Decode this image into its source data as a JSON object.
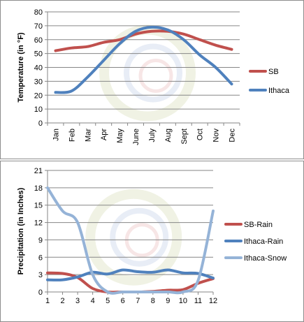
{
  "chart_data": [
    {
      "type": "line",
      "ylabel": "Temperature (in °F)",
      "xlabel": "",
      "categories": [
        "Jan",
        "Feb",
        "Mar",
        "Apr",
        "May",
        "June",
        "July",
        "Aug",
        "Sept",
        "Oct",
        "Nov",
        "Dec"
      ],
      "ylim": [
        0,
        80
      ],
      "yticks": [
        0,
        10,
        20,
        30,
        40,
        50,
        60,
        70,
        80
      ],
      "grid": "horizontal",
      "legend": "right",
      "series": [
        {
          "name": "SB",
          "color": "#c0504d",
          "values": [
            52,
            54,
            55,
            58,
            60,
            64,
            66,
            66,
            64,
            60,
            56,
            53
          ]
        },
        {
          "name": "Ithaca",
          "color": "#4f81bd",
          "values": [
            22,
            23,
            33,
            45,
            57,
            66,
            69,
            67,
            60,
            49,
            40,
            28
          ]
        }
      ]
    },
    {
      "type": "line",
      "ylabel": "Precipitation (in Inches)",
      "xlabel": "",
      "categories": [
        "1",
        "2",
        "3",
        "4",
        "5",
        "6",
        "7",
        "8",
        "9",
        "10",
        "11",
        "12"
      ],
      "ylim": [
        0,
        21
      ],
      "yticks": [
        0,
        3,
        6,
        9,
        12,
        15,
        18,
        21
      ],
      "grid": "horizontal",
      "legend": "right",
      "series": [
        {
          "name": "SB-Rain",
          "color": "#c0504d",
          "values": [
            3.3,
            3.2,
            2.5,
            0.6,
            0.0,
            0.0,
            0.0,
            0.1,
            0.3,
            0.4,
            1.5,
            2.3
          ]
        },
        {
          "name": "Ithaca-Rain",
          "color": "#4f81bd",
          "values": [
            2.1,
            2.1,
            2.6,
            3.4,
            3.1,
            3.8,
            3.5,
            3.4,
            3.8,
            3.3,
            3.2,
            2.4
          ]
        },
        {
          "name": "Ithaca-Snow",
          "color": "#95b3d7",
          "values": [
            18,
            14,
            12,
            3,
            0,
            0,
            0,
            0,
            0,
            0,
            2,
            14
          ]
        }
      ]
    }
  ]
}
